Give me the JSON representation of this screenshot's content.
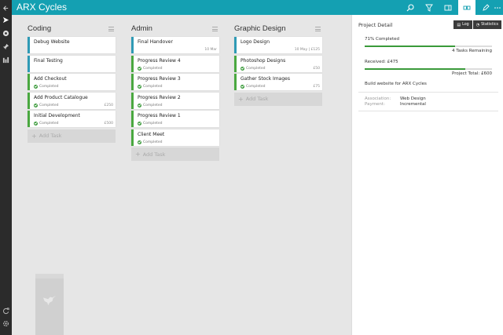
{
  "app": {
    "title": "ARX Cycles"
  },
  "rail": {
    "icons": [
      "back-arrow-icon",
      "send-icon",
      "record-icon",
      "pin-icon",
      "bar-chart-icon",
      "refresh-icon",
      "settings-icon"
    ]
  },
  "topbar": {
    "icons": [
      "search-icon",
      "filter-icon",
      "expand-icon",
      "cards-view-icon",
      "edit-icon",
      "more-icon"
    ]
  },
  "columns": [
    {
      "title": "Coding",
      "cards": [
        {
          "title": "Debug Website",
          "status": "",
          "meta": "",
          "color": "blue"
        },
        {
          "title": "Final Testing",
          "status": "",
          "meta": "",
          "color": "blue"
        },
        {
          "title": "Add Checkout",
          "status": "Completed",
          "meta": "",
          "color": "green"
        },
        {
          "title": "Add Product Catalogue",
          "status": "Completed",
          "meta": "£250",
          "color": "green"
        },
        {
          "title": "Initial Development",
          "status": "Completed",
          "meta": "£500",
          "color": "green"
        }
      ],
      "add_label": "Add Task"
    },
    {
      "title": "Admin",
      "cards": [
        {
          "title": "Final Handover",
          "status": "",
          "meta": "10 Mar",
          "color": "blue"
        },
        {
          "title": "Progress Review 4",
          "status": "Completed",
          "meta": "",
          "color": "green"
        },
        {
          "title": "Progress Review 3",
          "status": "Completed",
          "meta": "",
          "color": "green"
        },
        {
          "title": "Progress Review 2",
          "status": "Completed",
          "meta": "",
          "color": "green"
        },
        {
          "title": "Progress Review 1",
          "status": "Completed",
          "meta": "",
          "color": "green"
        },
        {
          "title": "Client Meet",
          "status": "Completed",
          "meta": "",
          "color": "green"
        }
      ],
      "add_label": "Add Task"
    },
    {
      "title": "Graphic Design",
      "cards": [
        {
          "title": "Logo Design",
          "status": "",
          "meta": "10 May | £125",
          "color": "blue"
        },
        {
          "title": "Photoshop Designs",
          "status": "Completed",
          "meta": "£50",
          "color": "green"
        },
        {
          "title": "Gather Stock Images",
          "status": "Completed",
          "meta": "£75",
          "color": "green"
        }
      ],
      "add_label": "Add Task"
    }
  ],
  "panel": {
    "title": "Project Detail",
    "log_label": "Log",
    "stats_label": "Statistics",
    "completed_text": "71% Completed",
    "completed_fraction": 0.71,
    "remaining_text": "4 Tasks Remaining",
    "received_text": "Received: £475",
    "received_fraction": 0.79,
    "total_text": "Project Total: £600",
    "description": "Build website for ARX Cycles",
    "association_label": "Association:",
    "association_value": "Web Design",
    "payment_label": "Payment:",
    "payment_value": "Incremental"
  },
  "colors": {
    "accent": "#14a0b2",
    "completed": "#3a9a3a",
    "in_progress": "#2f9ab5",
    "rail": "#2b2b2b"
  }
}
